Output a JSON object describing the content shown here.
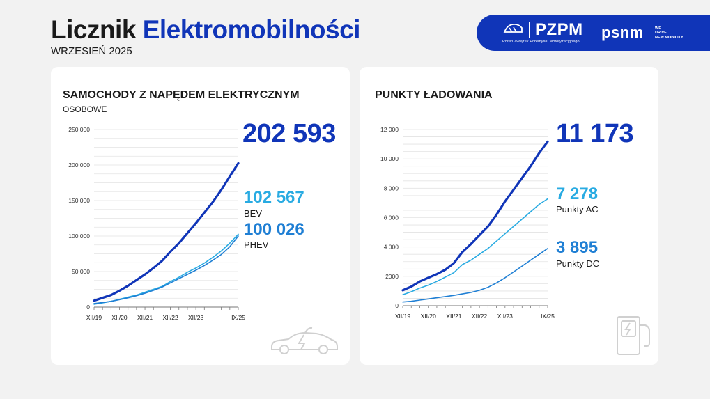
{
  "header": {
    "title_part1": "Licznik",
    "title_part2": "Elektromobilności",
    "date": "WRZESIEŃ 2025"
  },
  "banner": {
    "pzpm_name": "PZPM",
    "pzpm_subtitle": "Polski Związek Przemysłu Motoryzacyjnego",
    "psnm_name": "psnm",
    "psnm_tagline": [
      "WE",
      "DRIVE",
      "NEW MOBILITY!"
    ]
  },
  "left_card": {
    "title": "SAMOCHODY Z NAPĘDEM ELEKTRYCZNYM",
    "subtitle": "OSOBOWE",
    "total_value": "202 593",
    "bev_value": "102 567",
    "bev_label": "BEV",
    "phev_value": "100 026",
    "phev_label": "PHEV",
    "icon": "electric-car-icon"
  },
  "right_card": {
    "title": "PUNKTY ŁADOWANIA",
    "total_value": "11 173",
    "ac_value": "7 278",
    "ac_label": "Punkty AC",
    "dc_value": "3 895",
    "dc_label": "Punkty DC",
    "icon": "charging-station-icon"
  },
  "colors": {
    "brand_dark": "#1035b8",
    "series_light": "#29abe2",
    "series_mid": "#1f7fd4",
    "text": "#1a1a1a"
  },
  "chart_data": [
    {
      "type": "line",
      "ylim": [
        0,
        250000
      ],
      "yticks": [
        0,
        50000,
        100000,
        150000,
        200000,
        250000
      ],
      "ytick_labels": [
        "0",
        "50 000",
        "100 000",
        "150 000",
        "200 000",
        "250 000"
      ],
      "xtick_labels": [
        "XII/19",
        "XII/20",
        "XII/21",
        "XII/22",
        "XII/23",
        "IX/25"
      ],
      "x_months": [
        "XII/19",
        "IV/20",
        "VIII/20",
        "XII/20",
        "IV/21",
        "VIII/21",
        "XII/21",
        "IV/22",
        "VIII/22",
        "XII/22",
        "IV/23",
        "VIII/23",
        "XII/23",
        "IV/24",
        "VIII/24",
        "XII/24",
        "IV/25",
        "IX/25"
      ],
      "grid": true,
      "series": [
        {
          "role": "total",
          "color": "#1035b8",
          "values": [
            9000,
            13000,
            17000,
            23000,
            30000,
            38000,
            46000,
            55000,
            65000,
            78000,
            90000,
            104000,
            118000,
            133000,
            148000,
            165000,
            184000,
            202593
          ]
        },
        {
          "role": "bev",
          "color": "#29abe2",
          "values": [
            4000,
            6000,
            8000,
            11000,
            14000,
            17000,
            21000,
            25000,
            29000,
            36000,
            42000,
            49000,
            55000,
            62000,
            70000,
            79000,
            90000,
            102567
          ]
        },
        {
          "role": "phev",
          "color": "#1f7fd4",
          "values": [
            5000,
            6500,
            8000,
            10500,
            13000,
            16000,
            19500,
            23500,
            28000,
            34000,
            40000,
            46000,
            52000,
            58500,
            66000,
            74000,
            85000,
            100026
          ]
        }
      ]
    },
    {
      "type": "line",
      "ylim": [
        0,
        12000
      ],
      "yticks": [
        0,
        2000,
        4000,
        6000,
        8000,
        10000,
        12000
      ],
      "ytick_labels": [
        "0",
        "2000",
        "4 000",
        "6 000",
        "8 000",
        "10 000",
        "12 000"
      ],
      "xtick_labels": [
        "XII/19",
        "XII/20",
        "XII/21",
        "XII/22",
        "XII/23",
        "IX/25"
      ],
      "x_months": [
        "XII/19",
        "IV/20",
        "VIII/20",
        "XII/20",
        "IV/21",
        "VIII/21",
        "XII/21",
        "IV/22",
        "VIII/22",
        "XII/22",
        "IV/23",
        "VIII/23",
        "XII/23",
        "IV/24",
        "VIII/24",
        "XII/24",
        "IV/25",
        "IX/25"
      ],
      "grid": true,
      "series": [
        {
          "role": "total",
          "color": "#1035b8",
          "values": [
            1050,
            1300,
            1650,
            1900,
            2150,
            2450,
            2900,
            3650,
            4200,
            4800,
            5400,
            6200,
            7100,
            7900,
            8700,
            9500,
            10400,
            11173
          ]
        },
        {
          "role": "ac",
          "color": "#29abe2",
          "values": [
            750,
            950,
            1200,
            1400,
            1650,
            1950,
            2250,
            2800,
            3100,
            3500,
            3900,
            4400,
            4900,
            5400,
            5900,
            6400,
            6900,
            7278
          ]
        },
        {
          "role": "dc",
          "color": "#1f7fd4",
          "values": [
            250,
            300,
            380,
            460,
            540,
            620,
            700,
            800,
            900,
            1050,
            1250,
            1550,
            1900,
            2300,
            2700,
            3100,
            3500,
            3895
          ]
        }
      ]
    }
  ]
}
